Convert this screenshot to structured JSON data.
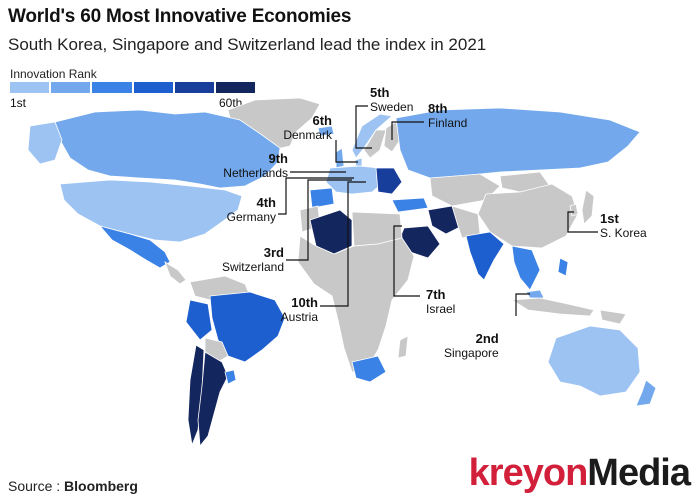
{
  "title": "World's 60 Most Innovative Economies",
  "subtitle": "South Korea, Singapore and Switzerland lead the index in 2021",
  "legend": {
    "title": "Innovation Rank",
    "min_label": "1st",
    "max_label": "60th",
    "colors": [
      "#c6dcf7",
      "#9dc3f2",
      "#73a9ec",
      "#3b82e6",
      "#1e5fcf",
      "#183e9b",
      "#14265e"
    ]
  },
  "colors": {
    "no_data": "#c8c8c8",
    "ocean": "#ffffff",
    "leader_line": "#111111"
  },
  "labels": [
    {
      "rank": "1st",
      "country": "S. Korea"
    },
    {
      "rank": "2nd",
      "country": "Singapore"
    },
    {
      "rank": "3rd",
      "country": "Switzerland"
    },
    {
      "rank": "4th",
      "country": "Germany"
    },
    {
      "rank": "5th",
      "country": "Sweden"
    },
    {
      "rank": "6th",
      "country": "Denmark"
    },
    {
      "rank": "7th",
      "country": "Israel"
    },
    {
      "rank": "8th",
      "country": "Finland"
    },
    {
      "rank": "9th",
      "country": "Netherlands"
    },
    {
      "rank": "10th",
      "country": "Austria"
    }
  ],
  "source": {
    "prefix": "Source :",
    "name": "Bloomberg"
  },
  "brand": {
    "part1": "kreyon",
    "part2": "Media"
  }
}
